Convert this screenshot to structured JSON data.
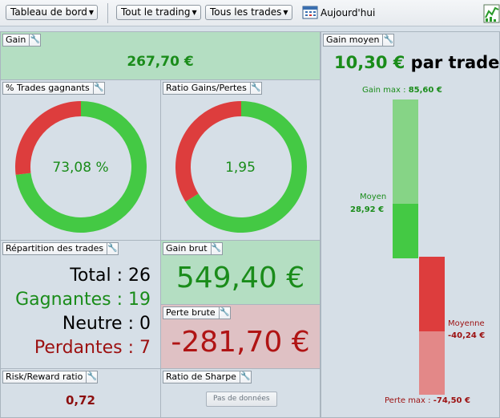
{
  "toolbar": {
    "dashboard_dropdown": "Tableau de bord",
    "scope_dropdown": "Tout le trading",
    "trades_dropdown": "Tous les trades",
    "today_label": "Aujourd'hui"
  },
  "panels": {
    "gain": {
      "title": "Gain",
      "value": "267,70 €"
    },
    "win_pct": {
      "title": "% Trades gagnants",
      "value": "73,08 %",
      "fraction": 0.7308
    },
    "ratio": {
      "title": "Ratio Gains/Pertes",
      "value": "1,95",
      "fraction": 0.661
    },
    "repartition": {
      "title": "Répartition des trades",
      "total_label": "Total :",
      "total_value": "26",
      "win_label": "Gagnantes :",
      "win_value": "19",
      "neutral_label": "Neutre :",
      "neutral_value": "0",
      "loss_label": "Perdantes :",
      "loss_value": "7"
    },
    "gross_gain": {
      "title": "Gain brut",
      "value": "549,40 €"
    },
    "gross_loss": {
      "title": "Perte brute",
      "value": "-281,70 €"
    },
    "risk_reward": {
      "title": "Risk/Reward ratio",
      "value": "0,72"
    },
    "sharpe": {
      "title": "Ratio de Sharpe",
      "no_data_label": "Pas de données"
    },
    "avg_gain": {
      "title": "Gain moyen",
      "value": "10,30 €",
      "suffix": "par trade",
      "max_gain_label": "Gain max :",
      "max_gain_value": "85,60 €",
      "avg_label": "Moyen",
      "avg_value": "28,92 €",
      "avg_loss_label": "Moyenne",
      "avg_loss_value": "-40,24 €",
      "max_loss_label": "Perte max :",
      "max_loss_value": "-74,50 €"
    }
  },
  "colors": {
    "green": "#44c944",
    "red": "#dd3d3d",
    "green_text": "#1a8c1a",
    "red_text": "#9c1010"
  }
}
